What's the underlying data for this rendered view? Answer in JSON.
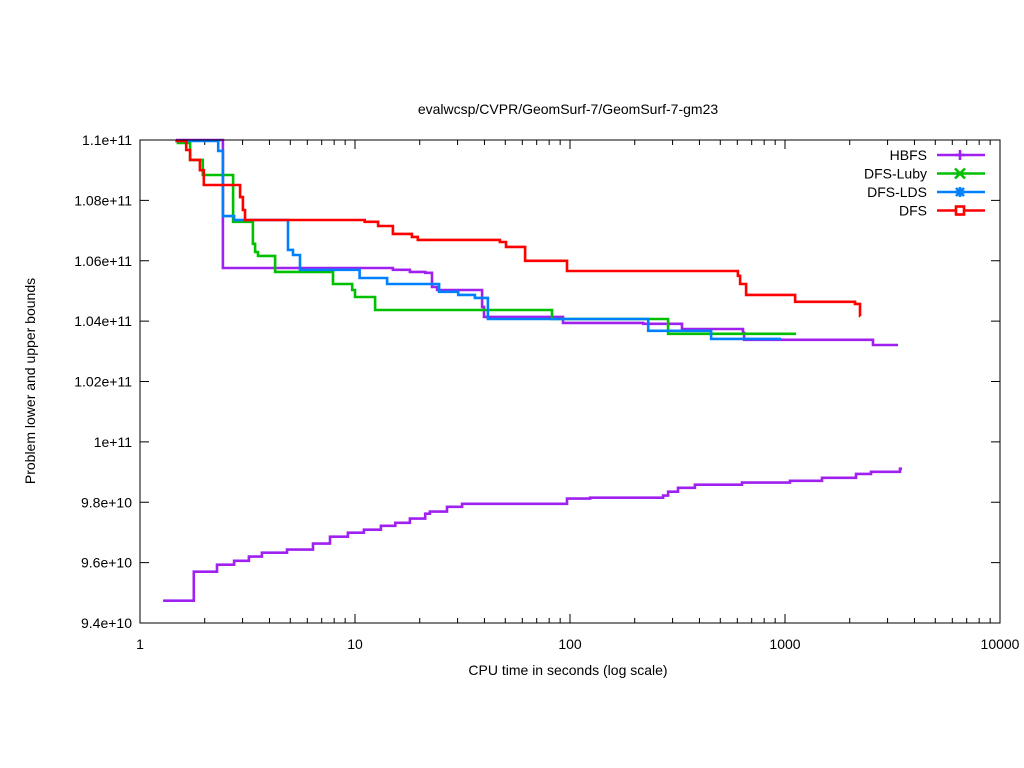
{
  "chart_data": {
    "type": "line",
    "title": "evalwcsp/CVPR/GeomSurf-7/GeomSurf-7-gm23",
    "xlabel": "CPU time in seconds (log scale)",
    "ylabel": "Problem lower and upper bounds",
    "xscale": "log",
    "xlim": [
      1,
      10000
    ],
    "ylim": [
      94000000000.0,
      110000000000.0
    ],
    "xticks": [
      1,
      10,
      100,
      1000,
      10000
    ],
    "xtick_labels": [
      "1",
      "10",
      "100",
      "1000",
      "10000"
    ],
    "yticks": [
      94000000000.0,
      96000000000.0,
      98000000000.0,
      100000000000.0,
      102000000000.0,
      104000000000.0,
      106000000000.0,
      108000000000.0,
      110000000000.0
    ],
    "ytick_labels": [
      "9.4e+10",
      "9.6e+10",
      "9.8e+10",
      "1e+11",
      "1.02e+11",
      "1.04e+11",
      "1.06e+11",
      "1.08e+11",
      "1.1e+11"
    ],
    "grid": false,
    "legend_position": "top-right",
    "y_unit_note": "series y values in units of 1e9",
    "series": [
      {
        "name": "HBFS",
        "color": "#a020f0",
        "marker": "plus",
        "step": true,
        "points": [
          [
            1.47,
            110.0
          ],
          [
            2.43,
            105.76
          ],
          [
            15.0,
            105.7
          ],
          [
            18.0,
            105.63
          ],
          [
            21.2,
            105.6
          ],
          [
            22.8,
            105.13
          ],
          [
            24.1,
            105.03
          ],
          [
            39.0,
            104.47
          ],
          [
            39.8,
            104.14
          ],
          [
            92.8,
            103.94
          ],
          [
            219,
            103.91
          ],
          [
            332,
            103.74
          ],
          [
            638,
            103.61
          ],
          [
            645,
            103.38
          ],
          [
            2566,
            103.21
          ],
          [
            3355,
            103.21
          ]
        ]
      },
      {
        "name": "HBFS-lower",
        "legend": false,
        "color": "#a020f0",
        "step": true,
        "points": [
          [
            1.28,
            94.74
          ],
          [
            1.78,
            95.7
          ],
          [
            2.28,
            95.93
          ],
          [
            2.74,
            96.06
          ],
          [
            3.21,
            96.2
          ],
          [
            3.69,
            96.33
          ],
          [
            4.83,
            96.43
          ],
          [
            6.38,
            96.63
          ],
          [
            7.65,
            96.86
          ],
          [
            9.27,
            96.99
          ],
          [
            11.0,
            97.09
          ],
          [
            13.2,
            97.22
          ],
          [
            15.4,
            97.32
          ],
          [
            18.0,
            97.46
          ],
          [
            21.2,
            97.62
          ],
          [
            22.3,
            97.69
          ],
          [
            26.8,
            97.85
          ],
          [
            31.5,
            97.95
          ],
          [
            96.8,
            98.12
          ],
          [
            124,
            98.15
          ],
          [
            271,
            98.22
          ],
          [
            286,
            98.35
          ],
          [
            318,
            98.48
          ],
          [
            381,
            98.58
          ],
          [
            631,
            98.65
          ],
          [
            1055,
            98.71
          ],
          [
            1486,
            98.81
          ],
          [
            2138,
            98.94
          ],
          [
            2513,
            99.01
          ],
          [
            3428,
            99.11
          ],
          [
            3500,
            99.11
          ]
        ]
      },
      {
        "name": "DFS-Luby",
        "color": "#00c000",
        "marker": "cross",
        "step": true,
        "points": [
          [
            1.46,
            109.97
          ],
          [
            1.5,
            109.9
          ],
          [
            1.71,
            109.34
          ],
          [
            1.96,
            108.84
          ],
          [
            2.71,
            107.29
          ],
          [
            3.35,
            106.56
          ],
          [
            3.43,
            106.29
          ],
          [
            3.54,
            106.16
          ],
          [
            4.25,
            105.63
          ],
          [
            7.9,
            105.23
          ],
          [
            9.7,
            105.03
          ],
          [
            10.0,
            104.8
          ],
          [
            12.4,
            104.37
          ],
          [
            82.5,
            104.07
          ],
          [
            286,
            103.58
          ],
          [
            1125,
            103.58
          ]
        ]
      },
      {
        "name": "DFS-LDS",
        "color": "#0080ff",
        "marker": "star",
        "step": true,
        "points": [
          [
            1.46,
            109.97
          ],
          [
            2.31,
            109.64
          ],
          [
            2.43,
            107.48
          ],
          [
            2.74,
            107.35
          ],
          [
            4.88,
            106.36
          ],
          [
            5.15,
            106.19
          ],
          [
            5.55,
            105.7
          ],
          [
            10.5,
            105.43
          ],
          [
            14.1,
            105.23
          ],
          [
            24.6,
            104.97
          ],
          [
            30.2,
            104.87
          ],
          [
            36.1,
            104.77
          ],
          [
            41.5,
            104.07
          ],
          [
            231,
            103.68
          ],
          [
            453,
            103.41
          ],
          [
            958,
            103.41
          ]
        ]
      },
      {
        "name": "DFS",
        "color": "#ff0000",
        "marker": "square",
        "step": true,
        "points": [
          [
            1.47,
            109.97
          ],
          [
            1.64,
            109.67
          ],
          [
            1.71,
            109.34
          ],
          [
            1.9,
            109.0
          ],
          [
            1.98,
            108.51
          ],
          [
            2.92,
            108.11
          ],
          [
            3.01,
            107.68
          ],
          [
            3.08,
            107.35
          ],
          [
            11.1,
            107.29
          ],
          [
            12.8,
            107.15
          ],
          [
            15.0,
            106.89
          ],
          [
            18.4,
            106.79
          ],
          [
            19.6,
            106.69
          ],
          [
            47.2,
            106.62
          ],
          [
            50.4,
            106.46
          ],
          [
            61.8,
            106.0
          ],
          [
            96.8,
            105.66
          ],
          [
            604,
            105.5
          ],
          [
            618,
            105.23
          ],
          [
            659,
            104.87
          ],
          [
            1114,
            104.64
          ],
          [
            2117,
            104.57
          ],
          [
            2233,
            104.17
          ],
          [
            2240,
            104.17
          ]
        ]
      }
    ]
  }
}
